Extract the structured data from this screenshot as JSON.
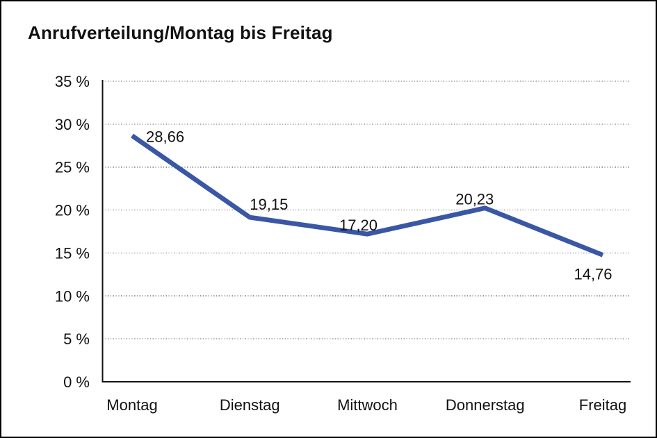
{
  "window": {
    "title": "Anrufverteilung/Montag bis Freitag"
  },
  "chart_data": {
    "type": "line",
    "title": "Anrufverteilung/Montag bis Freitag",
    "categories": [
      "Montag",
      "Dienstag",
      "Mittwoch",
      "Donnerstag",
      "Freitag"
    ],
    "series": [
      {
        "name": "Anrufverteilung",
        "values": [
          28.66,
          19.15,
          17.2,
          20.23,
          14.76
        ]
      }
    ],
    "point_labels": [
      "28,66",
      "19,15",
      "17,20",
      "20,23",
      "14,76"
    ],
    "y_tick_labels": [
      "0 %",
      "5 %",
      "10 %",
      "15 %",
      "20 %",
      "25 %",
      "30 %",
      "35 %"
    ],
    "ylim": [
      0,
      35
    ],
    "y_tick_step": 5,
    "xlabel": "",
    "ylabel": "",
    "grid": "horizontal-dotted",
    "legend": "none",
    "colors": {
      "line": "#3A57A6",
      "text": "#111111",
      "grid": "#595959",
      "axis": "#111111",
      "background": "#ffffff",
      "border": "#000000"
    }
  }
}
